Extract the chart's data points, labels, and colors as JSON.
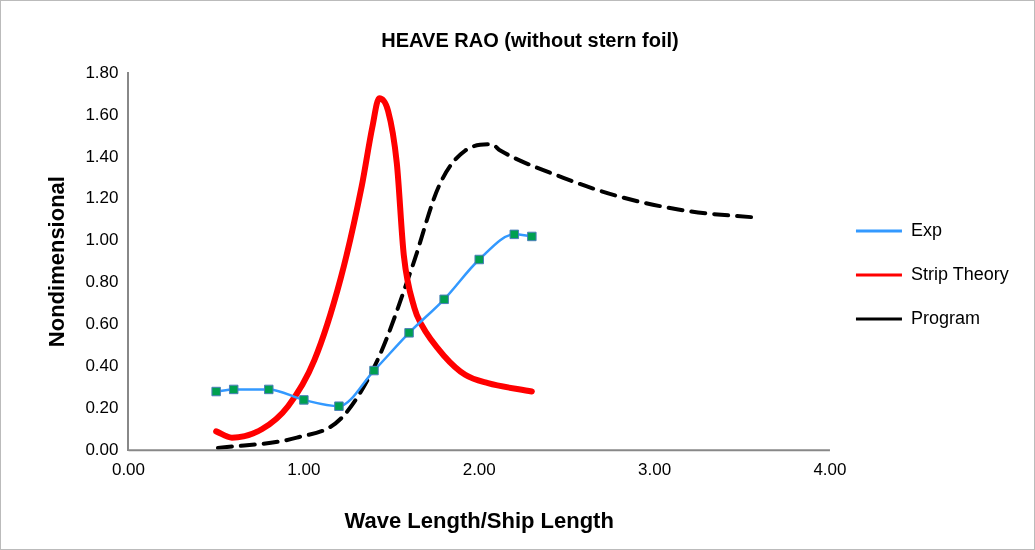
{
  "chart_data": {
    "type": "line",
    "title": "HEAVE RAO (without stern foil)",
    "xlabel": "Wave Length/Ship Length",
    "ylabel": "Nondimensional",
    "xlim": [
      0,
      4
    ],
    "xticks": [
      {
        "value": 0,
        "label": "0.00"
      },
      {
        "value": 1,
        "label": "1.00"
      },
      {
        "value": 2,
        "label": "2.00"
      },
      {
        "value": 3,
        "label": "3.00"
      },
      {
        "value": 4,
        "label": "4.00"
      }
    ],
    "ylim": [
      0,
      1.8
    ],
    "yticks": [
      {
        "value": 0,
        "label": "0.00"
      },
      {
        "value": 0.2,
        "label": "0.20"
      },
      {
        "value": 0.4,
        "label": "0.40"
      },
      {
        "value": 0.6,
        "label": "0.60"
      },
      {
        "value": 0.8,
        "label": "0.80"
      },
      {
        "value": 1,
        "label": "1.00"
      },
      {
        "value": 1.2,
        "label": "1.20"
      },
      {
        "value": 1.4,
        "label": "1.40"
      },
      {
        "value": 1.6,
        "label": "1.60"
      },
      {
        "value": 1.8,
        "label": "1.80"
      }
    ],
    "grid": false,
    "legend": "right",
    "series": [
      {
        "name": "Exp",
        "color": "#3399ff",
        "marker": "square",
        "line_style": "solid",
        "x": [
          0.5,
          0.6,
          0.8,
          1.0,
          1.2,
          1.4,
          1.6,
          1.8,
          2.0,
          2.2,
          2.3
        ],
        "values": [
          0.28,
          0.29,
          0.29,
          0.24,
          0.21,
          0.38,
          0.56,
          0.72,
          0.91,
          1.03,
          1.02
        ]
      },
      {
        "name": "Strip Theory",
        "color": "#ff0000",
        "marker": "none",
        "line_style": "solid",
        "x": [
          0.5,
          0.59,
          0.76,
          0.91,
          1.06,
          1.21,
          1.33,
          1.39,
          1.43,
          1.48,
          1.53,
          1.57,
          1.63,
          1.67,
          1.8,
          1.92,
          2.05,
          2.3
        ],
        "values": [
          0.09,
          0.06,
          0.1,
          0.21,
          0.43,
          0.82,
          1.26,
          1.54,
          1.68,
          1.62,
          1.37,
          0.93,
          0.68,
          0.6,
          0.45,
          0.36,
          0.32,
          0.28
        ]
      },
      {
        "name": "Program",
        "color": "#000000",
        "marker": "none",
        "line_style": "dashed",
        "x": [
          0.51,
          0.96,
          1.21,
          1.42,
          1.62,
          1.77,
          1.92,
          2.07,
          2.12,
          2.48,
          2.8,
          3.2,
          3.58
        ],
        "values": [
          0.01,
          0.06,
          0.15,
          0.43,
          0.88,
          1.26,
          1.43,
          1.46,
          1.43,
          1.3,
          1.21,
          1.14,
          1.11
        ]
      }
    ]
  }
}
